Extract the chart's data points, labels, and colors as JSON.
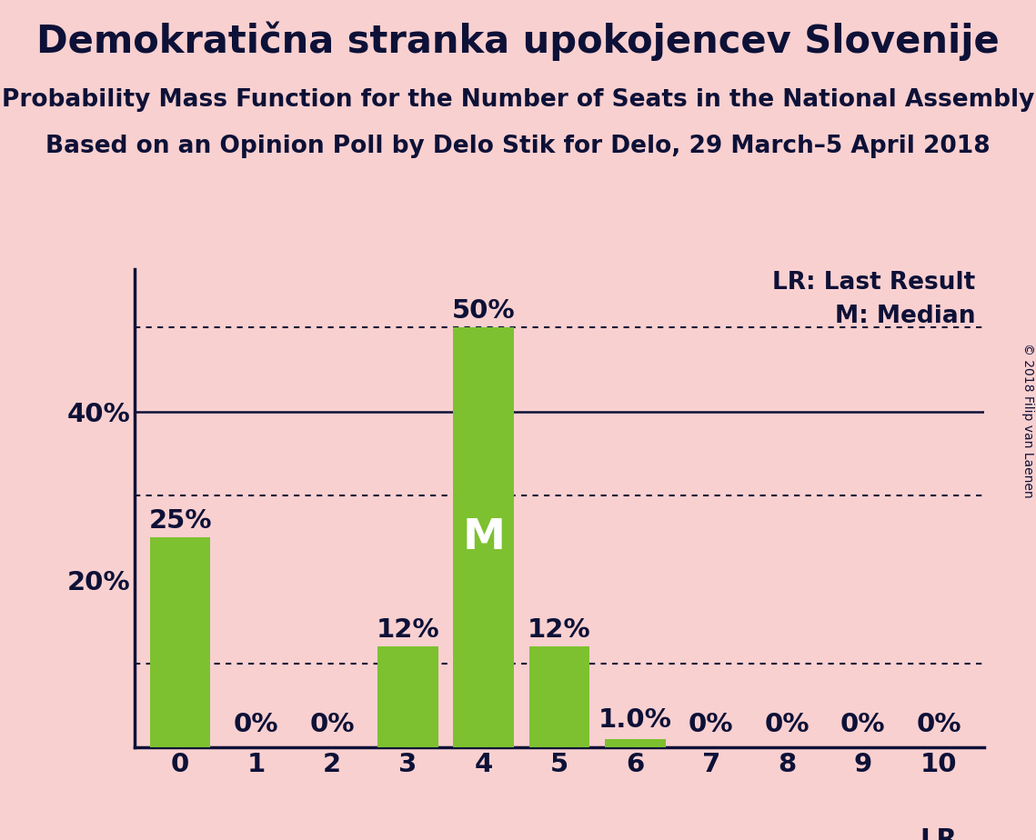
{
  "title": "Demokratična stranka upokojencev Slovenije",
  "subtitle1": "Probability Mass Function for the Number of Seats in the National Assembly",
  "subtitle2": "Based on an Opinion Poll by Delo Stik for Delo, 29 March–5 April 2018",
  "copyright": "© 2018 Filip van Laenen",
  "categories": [
    0,
    1,
    2,
    3,
    4,
    5,
    6,
    7,
    8,
    9,
    10
  ],
  "values": [
    25,
    0,
    0,
    12,
    50,
    12,
    1.0,
    0,
    0,
    0,
    0
  ],
  "bar_color": "#7dc130",
  "background_color": "#f9d0d0",
  "text_color": "#0d1137",
  "yticks": [
    20,
    40
  ],
  "ylim": [
    0,
    57
  ],
  "median_bar": 4,
  "lr_bar": 10,
  "legend_lr": "LR: Last Result",
  "legend_m": "M: Median",
  "solid_line": 40,
  "dotted_lines": [
    10,
    30,
    50
  ],
  "title_fontsize": 30,
  "subtitle_fontsize": 19,
  "bar_label_fontsize": 21,
  "tick_fontsize": 21,
  "legend_fontsize": 19,
  "copyright_fontsize": 10
}
